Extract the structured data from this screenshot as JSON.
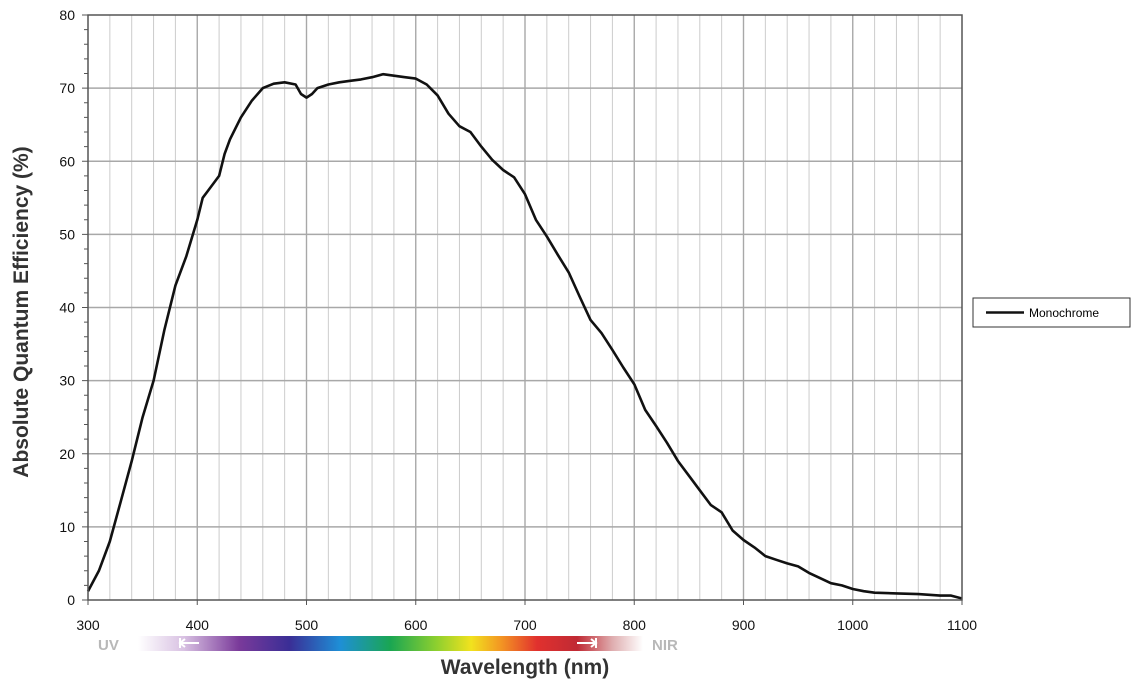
{
  "chart_data": {
    "type": "line",
    "title": "",
    "xlabel": "Wavelength (nm)",
    "ylabel": "Absolute Quantum Efficiency (%)",
    "xlim": [
      300,
      1100
    ],
    "ylim": [
      0,
      80
    ],
    "x_ticks": [
      300,
      400,
      500,
      600,
      700,
      800,
      900,
      1000,
      1100
    ],
    "y_ticks": [
      0,
      10,
      20,
      30,
      40,
      50,
      60,
      70,
      80
    ],
    "x_minor_step": 20,
    "y_minor_step": 2,
    "grid": true,
    "legend_position": "right",
    "spectrum_band": {
      "left_label": "UV",
      "right_label": "NIR"
    },
    "series": [
      {
        "name": "Monochrome",
        "color": "#111111",
        "points": [
          [
            300,
            1.2
          ],
          [
            310,
            4
          ],
          [
            320,
            8
          ],
          [
            330,
            13.5
          ],
          [
            340,
            19
          ],
          [
            350,
            25
          ],
          [
            360,
            30
          ],
          [
            370,
            37
          ],
          [
            380,
            43
          ],
          [
            390,
            47
          ],
          [
            400,
            52
          ],
          [
            405,
            55
          ],
          [
            410,
            56
          ],
          [
            420,
            58
          ],
          [
            425,
            61
          ],
          [
            430,
            63
          ],
          [
            440,
            66
          ],
          [
            450,
            68.3
          ],
          [
            460,
            70
          ],
          [
            470,
            70.6
          ],
          [
            480,
            70.8
          ],
          [
            490,
            70.5
          ],
          [
            495,
            69.2
          ],
          [
            500,
            68.7
          ],
          [
            505,
            69.2
          ],
          [
            510,
            70
          ],
          [
            520,
            70.5
          ],
          [
            530,
            70.8
          ],
          [
            540,
            71
          ],
          [
            550,
            71.2
          ],
          [
            560,
            71.5
          ],
          [
            570,
            71.9
          ],
          [
            580,
            71.7
          ],
          [
            590,
            71.5
          ],
          [
            600,
            71.3
          ],
          [
            610,
            70.5
          ],
          [
            620,
            69
          ],
          [
            630,
            66.5
          ],
          [
            640,
            64.8
          ],
          [
            650,
            64
          ],
          [
            660,
            62
          ],
          [
            670,
            60.2
          ],
          [
            680,
            58.8
          ],
          [
            690,
            57.8
          ],
          [
            700,
            55.5
          ],
          [
            710,
            52
          ],
          [
            720,
            49.7
          ],
          [
            730,
            47.2
          ],
          [
            740,
            44.8
          ],
          [
            750,
            41.5
          ],
          [
            760,
            38.3
          ],
          [
            770,
            36.5
          ],
          [
            780,
            34.2
          ],
          [
            790,
            31.8
          ],
          [
            800,
            29.5
          ],
          [
            810,
            26
          ],
          [
            820,
            23.8
          ],
          [
            830,
            21.5
          ],
          [
            840,
            19
          ],
          [
            850,
            17
          ],
          [
            860,
            15
          ],
          [
            870,
            13
          ],
          [
            880,
            12
          ],
          [
            890,
            9.5
          ],
          [
            900,
            8.2
          ],
          [
            910,
            7.2
          ],
          [
            920,
            6
          ],
          [
            930,
            5.5
          ],
          [
            940,
            5
          ],
          [
            950,
            4.6
          ],
          [
            960,
            3.7
          ],
          [
            970,
            3
          ],
          [
            980,
            2.3
          ],
          [
            990,
            2
          ],
          [
            1000,
            1.5
          ],
          [
            1010,
            1.2
          ],
          [
            1020,
            1
          ],
          [
            1040,
            0.9
          ],
          [
            1060,
            0.8
          ],
          [
            1080,
            0.6
          ],
          [
            1090,
            0.6
          ],
          [
            1100,
            0.2
          ]
        ]
      }
    ]
  }
}
